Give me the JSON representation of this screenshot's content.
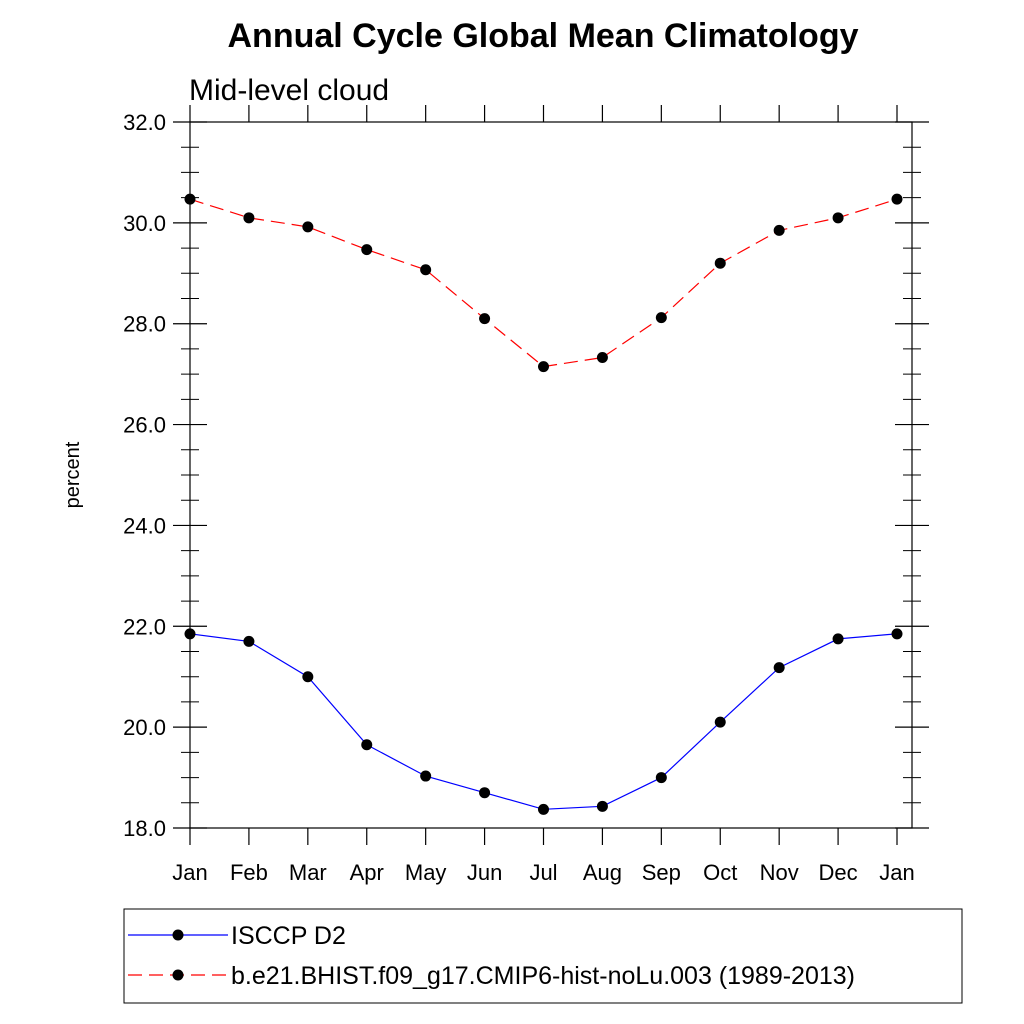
{
  "chart_data": {
    "type": "line",
    "title": "Annual Cycle Global Mean Climatology",
    "subtitle": "Mid-level cloud",
    "ylabel": "percent",
    "xlabel": "",
    "categories": [
      "Jan",
      "Feb",
      "Mar",
      "Apr",
      "May",
      "Jun",
      "Jul",
      "Aug",
      "Sep",
      "Oct",
      "Nov",
      "Dec",
      "Jan"
    ],
    "ylim": [
      18.0,
      32.0
    ],
    "yticks": [
      "18.0",
      "20.0",
      "22.0",
      "24.0",
      "26.0",
      "28.0",
      "30.0",
      "32.0"
    ],
    "series": [
      {
        "name": "ISCCP D2",
        "color": "#0000ff",
        "dash": "solid",
        "marker": "circle",
        "values": [
          21.85,
          21.7,
          21.0,
          19.65,
          19.03,
          18.7,
          18.37,
          18.43,
          19.0,
          20.1,
          21.18,
          21.75,
          21.85
        ]
      },
      {
        "name": "b.e21.BHIST.f09_g17.CMIP6-hist-noLu.003 (1989-2013)",
        "color": "#ff0000",
        "dash": "dashed",
        "marker": "circle",
        "values": [
          30.47,
          30.1,
          29.92,
          29.47,
          29.07,
          28.1,
          27.15,
          27.33,
          28.12,
          29.2,
          29.85,
          30.1,
          30.47
        ]
      }
    ],
    "legend_position": "bottom",
    "grid": false
  }
}
